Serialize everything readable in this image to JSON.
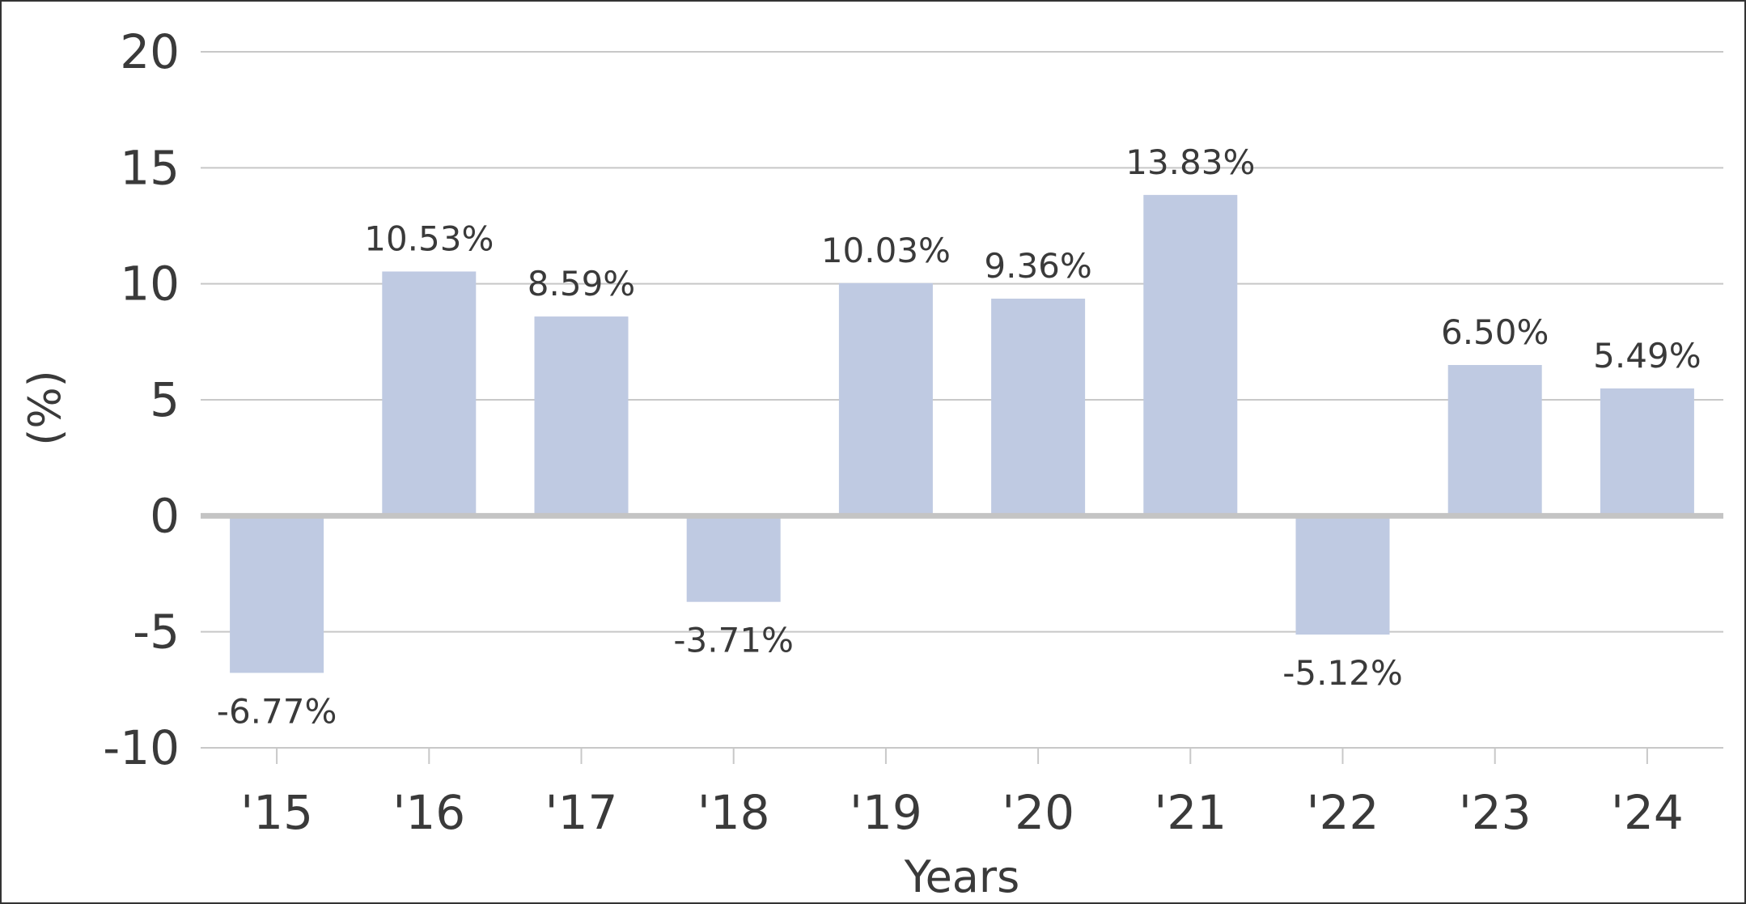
{
  "chart_data": {
    "type": "bar",
    "title": "",
    "xlabel": "Years",
    "ylabel": "(%)",
    "categories": [
      "'15",
      "'16",
      "'17",
      "'18",
      "'19",
      "'20",
      "'21",
      "'22",
      "'23",
      "'24"
    ],
    "values": [
      -6.77,
      10.53,
      8.59,
      -3.71,
      10.03,
      9.36,
      13.83,
      -5.12,
      6.5,
      5.49
    ],
    "value_labels": [
      "-6.77%",
      "10.53%",
      "8.59%",
      "-3.71%",
      "10.03%",
      "9.36%",
      "13.83%",
      "-5.12%",
      "6.50%",
      "5.49%"
    ],
    "ylim": [
      -10,
      20
    ],
    "yticks": [
      20,
      15,
      10,
      5,
      0,
      -5,
      -10
    ],
    "grid": true,
    "legend": "none",
    "colors": {
      "bar": "#bfcae2",
      "grid": "#c8c8c8",
      "zero_line": "#c4c4c4",
      "text": "#3a3a3a"
    }
  }
}
